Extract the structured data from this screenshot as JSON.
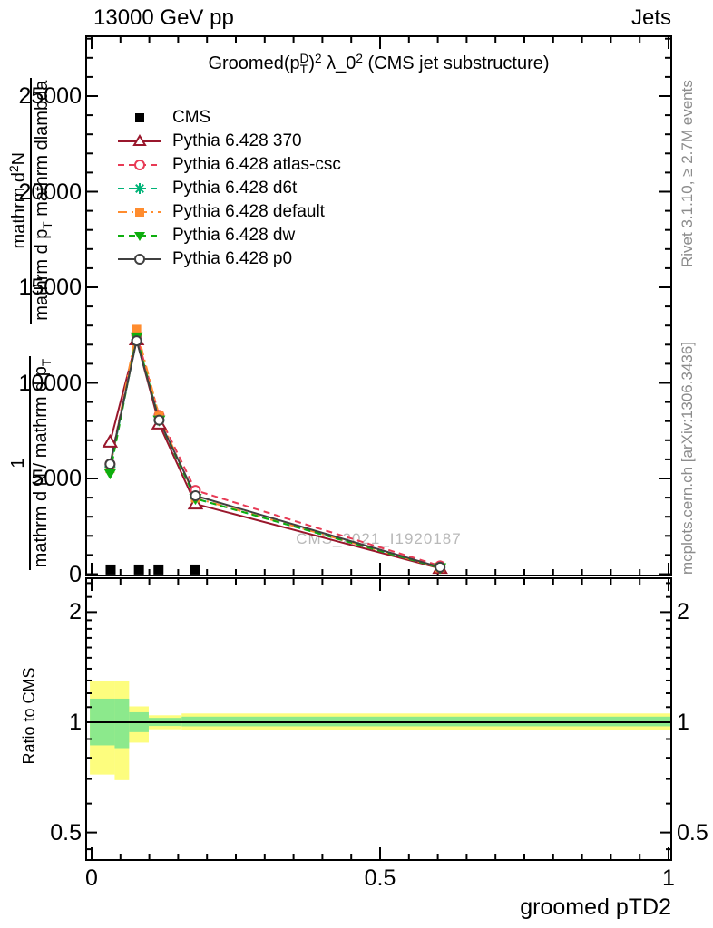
{
  "header": {
    "beam": "13000 GeV pp",
    "analysis_group": "Jets"
  },
  "plot_title": "Groomed(p_{T}^{D})^{2} λ_0^{2} (CMS jet substructure)",
  "watermark": "CMS_2021_I1920187",
  "side_notes": {
    "top_right": "Rivet 3.1.10, ≥ 2.7M events",
    "bottom_right": "mcplots.cern.ch [arXiv:1306.3436]"
  },
  "axes": {
    "x_label": "groomed pTD2",
    "x_ticks": [
      {
        "v": 0,
        "label": "0"
      },
      {
        "v": 0.5,
        "label": "0.5"
      },
      {
        "v": 1,
        "label": "1"
      }
    ],
    "y_ticks_main": [
      {
        "v": 0,
        "label": "0"
      },
      {
        "v": 5000,
        "label": "5000"
      },
      {
        "v": 10000,
        "label": "10000"
      },
      {
        "v": 15000,
        "label": "15000"
      },
      {
        "v": 20000,
        "label": "20000"
      },
      {
        "v": 25000,
        "label": "25000"
      }
    ],
    "y_label_frac1": {
      "num": "1",
      "den": "mathrm d N / mathrm d p_{T}"
    },
    "y_label_frac2": {
      "num": "mathrm d^{2}N",
      "den": "mathrm d p_{T} mathrm dlambda"
    },
    "ratio_label": "Ratio to CMS",
    "ratio_ticks": [
      {
        "v": 0.5,
        "label": "0.5"
      },
      {
        "v": 1,
        "label": "1"
      },
      {
        "v": 2,
        "label": "2"
      }
    ]
  },
  "chart_data": {
    "type": "line",
    "title": "Groomed (pT^D)^2 lambda_0^2 (CMS jet substructure)",
    "xlabel": "groomed pTD2",
    "ylabel": "1/(dN/dpT) d2N/(dpT dlambda)",
    "xlim": [
      -0.0095,
      1.005
    ],
    "ylim": [
      0,
      28200
    ],
    "grid": false,
    "legend_position": "top-left",
    "x": [
      0.032,
      0.078,
      0.117,
      0.18,
      0.604
    ],
    "series": [
      {
        "name": "Pythia 6.428 370",
        "color": "#99172c",
        "line": "solid",
        "marker": "triangle-open",
        "values": [
          6900,
          12250,
          7850,
          3670,
          300
        ]
      },
      {
        "name": "Pythia 6.428 atlas-csc",
        "color": "#e83a55",
        "line": "dashed",
        "marker": "circle-open",
        "values": [
          5750,
          12500,
          8300,
          4380,
          430
        ]
      },
      {
        "name": "Pythia 6.428 d6t",
        "color": "#00b377",
        "line": "dashed",
        "marker": "asterisk",
        "values": [
          5600,
          12250,
          8050,
          3950,
          330
        ]
      },
      {
        "name": "Pythia 6.428 default",
        "color": "#ff8c2e",
        "line": "dashdot",
        "marker": "square-filled",
        "values": [
          5520,
          12800,
          8260,
          3980,
          330
        ]
      },
      {
        "name": "Pythia 6.428 dw",
        "color": "#0eae0e",
        "line": "dashed",
        "marker": "triangle-down-filled",
        "values": [
          5280,
          12400,
          8050,
          3950,
          330
        ]
      },
      {
        "name": "Pythia 6.428 p0",
        "color": "#404040",
        "line": "solid",
        "marker": "circle-open",
        "values": [
          5750,
          12200,
          8050,
          4100,
          360
        ]
      }
    ],
    "cms": {
      "label": "CMS",
      "color": "#000000",
      "marker": "square-filled",
      "points": {
        "x": [
          0.033,
          0.082,
          0.116,
          0.18
        ],
        "y": [
          240,
          240,
          240,
          240
        ]
      }
    },
    "ratio_panel": {
      "yscale": "log",
      "ylim": [
        0.418,
        2.476
      ],
      "reference_line": 1.0,
      "band_colors": {
        "outer": "#fdfd7e",
        "inner": "#8ce98c"
      },
      "bands": [
        {
          "x0": -0.003,
          "x1": 0.04,
          "yellow": [
            0.72,
            1.3
          ],
          "green": [
            0.865,
            1.16
          ]
        },
        {
          "x0": 0.04,
          "x1": 0.065,
          "yellow": [
            0.695,
            1.3
          ],
          "green": [
            0.85,
            1.16
          ]
        },
        {
          "x0": 0.065,
          "x1": 0.099,
          "yellow": [
            0.88,
            1.105
          ],
          "green": [
            0.94,
            1.065
          ]
        },
        {
          "x0": 0.099,
          "x1": 0.156,
          "yellow": [
            0.957,
            1.045
          ],
          "green": [
            0.977,
            1.028
          ]
        },
        {
          "x0": 0.156,
          "x1": 1.005,
          "yellow": [
            0.95,
            1.057
          ],
          "green": [
            0.975,
            1.036
          ]
        }
      ]
    }
  }
}
